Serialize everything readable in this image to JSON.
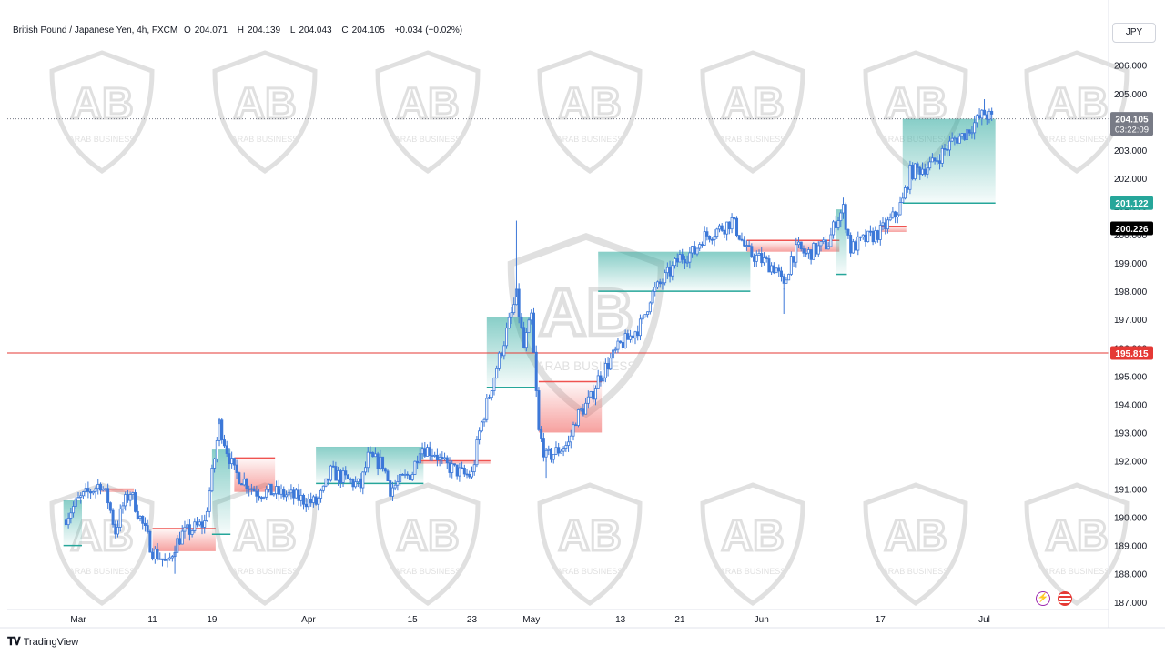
{
  "header": {
    "symbol": "British Pound / Japanese Yen, 4h, FXCM",
    "open_label": "O",
    "open": "204.071",
    "high_label": "H",
    "high": "204.139",
    "low_label": "L",
    "low": "204.043",
    "close_label": "C",
    "close": "204.105",
    "change": "+0.034 (+0.02%)",
    "currency": "JPY"
  },
  "price_tags": {
    "last_price": "204.105",
    "countdown": "03:22:09",
    "trail_support": "201.122",
    "trail_resistance": "200.226",
    "horizontal_line": "195.815"
  },
  "watermark": {
    "text": "ARAB BUSINESS"
  },
  "footer": {
    "brand": "TradingView"
  },
  "colors": {
    "candle": "#3c78d8",
    "trail_up": "#26a69a",
    "trail_down": "#ef5350",
    "horizontal_line": "#e53935",
    "last_price_tag": "#787b86"
  },
  "chart_data": {
    "type": "candlestick",
    "interval": "4h",
    "yaxis_ticks": [
      "187.000",
      "188.000",
      "189.000",
      "190.000",
      "191.000",
      "192.000",
      "193.000",
      "194.000",
      "195.000",
      "196.000",
      "197.000",
      "198.000",
      "199.000",
      "200.000",
      "201.000",
      "202.000",
      "203.000",
      "204.000",
      "205.000",
      "206.000"
    ],
    "ylim": [
      186.8,
      206.7
    ],
    "xaxis_ticks": [
      "Mar",
      "11",
      "19",
      "Apr",
      "15",
      "23",
      "May",
      "13",
      "21",
      "Jun",
      "17",
      "Jul"
    ],
    "close_path": [
      {
        "t": "Feb 28",
        "close": 189.9
      },
      {
        "t": "Mar 1",
        "close": 190.6
      },
      {
        "t": "Mar 4",
        "close": 191.2
      },
      {
        "t": "Mar 5",
        "close": 190.6
      },
      {
        "t": "Mar 6",
        "close": 189.5
      },
      {
        "t": "Mar 7",
        "close": 190.4
      },
      {
        "t": "Mar 8",
        "close": 190.9
      },
      {
        "t": "Mar 11",
        "close": 188.8
      },
      {
        "t": "Mar 12",
        "close": 188.6
      },
      {
        "t": "Mar 13",
        "close": 188.3
      },
      {
        "t": "Mar 14",
        "close": 189.0
      },
      {
        "t": "Mar 15",
        "close": 189.4
      },
      {
        "t": "Mar 18",
        "close": 189.8
      },
      {
        "t": "Mar 19",
        "close": 191.5
      },
      {
        "t": "Mar 20",
        "close": 193.3
      },
      {
        "t": "Mar 21",
        "close": 192.4
      },
      {
        "t": "Mar 22",
        "close": 191.6
      },
      {
        "t": "Mar 25",
        "close": 190.9
      },
      {
        "t": "Mar 27",
        "close": 190.9
      },
      {
        "t": "Mar 29",
        "close": 190.8
      },
      {
        "t": "Apr 2",
        "close": 190.5
      },
      {
        "t": "Apr 3",
        "close": 190.9
      },
      {
        "t": "Apr 4",
        "close": 191.6
      },
      {
        "t": "Apr 8",
        "close": 191.1
      },
      {
        "t": "Apr 9",
        "close": 192.1
      },
      {
        "t": "Apr 11",
        "close": 191.9
      },
      {
        "t": "Apr 12",
        "close": 191.0
      },
      {
        "t": "Apr 15",
        "close": 191.6
      },
      {
        "t": "Apr 16",
        "close": 192.5
      },
      {
        "t": "Apr 18",
        "close": 192.3
      },
      {
        "t": "Apr 19",
        "close": 191.9
      },
      {
        "t": "Apr 22",
        "close": 191.5
      },
      {
        "t": "Apr 23",
        "close": 191.5
      },
      {
        "t": "Apr 24",
        "close": 193.0
      },
      {
        "t": "Apr 26",
        "close": 195.0
      },
      {
        "t": "Apr 29",
        "close": 197.8
      },
      {
        "t": "Apr 30",
        "close": 196.0
      },
      {
        "t": "May 1",
        "close": 197.1
      },
      {
        "t": "May 2",
        "close": 193.0
      },
      {
        "t": "May 3",
        "close": 192.1
      },
      {
        "t": "May 6",
        "close": 192.6
      },
      {
        "t": "May 7",
        "close": 193.5
      },
      {
        "t": "May 9",
        "close": 194.2
      },
      {
        "t": "May 10",
        "close": 194.9
      },
      {
        "t": "May 13",
        "close": 196.1
      },
      {
        "t": "May 14",
        "close": 196.3
      },
      {
        "t": "May 16",
        "close": 196.9
      },
      {
        "t": "May 17",
        "close": 197.8
      },
      {
        "t": "May 20",
        "close": 198.8
      },
      {
        "t": "May 21",
        "close": 199.2
      },
      {
        "t": "May 23",
        "close": 199.4
      },
      {
        "t": "May 24",
        "close": 199.9
      },
      {
        "t": "May 27",
        "close": 200.3
      },
      {
        "t": "May 28",
        "close": 200.5
      },
      {
        "t": "May 29",
        "close": 200.0
      },
      {
        "t": "May 30",
        "close": 199.4
      },
      {
        "t": "Jun 3",
        "close": 198.8
      },
      {
        "t": "Jun 4",
        "close": 198.1
      },
      {
        "t": "Jun 5",
        "close": 199.2
      },
      {
        "t": "Jun 6",
        "close": 199.5
      },
      {
        "t": "Jun 7",
        "close": 199.3
      },
      {
        "t": "Jun 10",
        "close": 199.7
      },
      {
        "t": "Jun 11",
        "close": 200.5
      },
      {
        "t": "Jun 12",
        "close": 200.9
      },
      {
        "t": "Jun 13",
        "close": 199.5
      },
      {
        "t": "Jun 14",
        "close": 199.7
      },
      {
        "t": "Jun 17",
        "close": 200.1
      },
      {
        "t": "Jun 18",
        "close": 200.4
      },
      {
        "t": "Jun 19",
        "close": 200.7
      },
      {
        "t": "Jun 20",
        "close": 201.2
      },
      {
        "t": "Jun 21",
        "close": 202.2
      },
      {
        "t": "Jun 24",
        "close": 202.5
      },
      {
        "t": "Jun 25",
        "close": 202.8
      },
      {
        "t": "Jun 26",
        "close": 203.1
      },
      {
        "t": "Jun 27",
        "close": 203.4
      },
      {
        "t": "Jun 28",
        "close": 203.5
      },
      {
        "t": "Jul 1",
        "close": 204.3
      },
      {
        "t": "Jul 2",
        "close": 204.105
      }
    ],
    "key_extremes": [
      {
        "t": "Mar 14",
        "low": 188.0
      },
      {
        "t": "Mar 20",
        "high": 193.5
      },
      {
        "t": "Apr 29",
        "high": 200.5
      },
      {
        "t": "May 3",
        "low": 191.4
      },
      {
        "t": "Jun 4",
        "low": 197.2
      },
      {
        "t": "Jul 1",
        "high": 204.8
      }
    ],
    "trailing_stop": [
      {
        "from": "Feb 28",
        "to": "Mar 1",
        "value": 189.0,
        "dir": "up"
      },
      {
        "from": "Mar 4",
        "to": "Mar 8",
        "value": 191.0,
        "dir": "down"
      },
      {
        "from": "Mar 11",
        "to": "Mar 19",
        "value": 189.6,
        "dir": "down"
      },
      {
        "from": "Mar 19",
        "to": "Mar 21",
        "value": 189.4,
        "dir": "up"
      },
      {
        "from": "Mar 22",
        "to": "Mar 27",
        "value": 192.1,
        "dir": "down"
      },
      {
        "from": "Apr 2",
        "to": "Apr 16",
        "value": 191.2,
        "dir": "up"
      },
      {
        "from": "Apr 16",
        "to": "Apr 25",
        "value": 192.0,
        "dir": "down"
      },
      {
        "from": "Apr 25",
        "to": "May 1",
        "value": 194.6,
        "dir": "up"
      },
      {
        "from": "May 2",
        "to": "May 10",
        "value": 194.8,
        "dir": "down"
      },
      {
        "from": "May 10",
        "to": "May 30",
        "value": 198.0,
        "dir": "up"
      },
      {
        "from": "May 30",
        "to": "Jun 11",
        "value": 199.8,
        "dir": "down"
      },
      {
        "from": "Jun 11",
        "to": "Jun 12",
        "value": 198.6,
        "dir": "up"
      },
      {
        "from": "Jun 17",
        "to": "Jun 20",
        "value": 200.3,
        "dir": "down"
      },
      {
        "from": "Jun 20",
        "to": "Jul 2",
        "value": 201.122,
        "dir": "up"
      }
    ],
    "horizontal_level": 195.815,
    "last_price": 204.105
  }
}
